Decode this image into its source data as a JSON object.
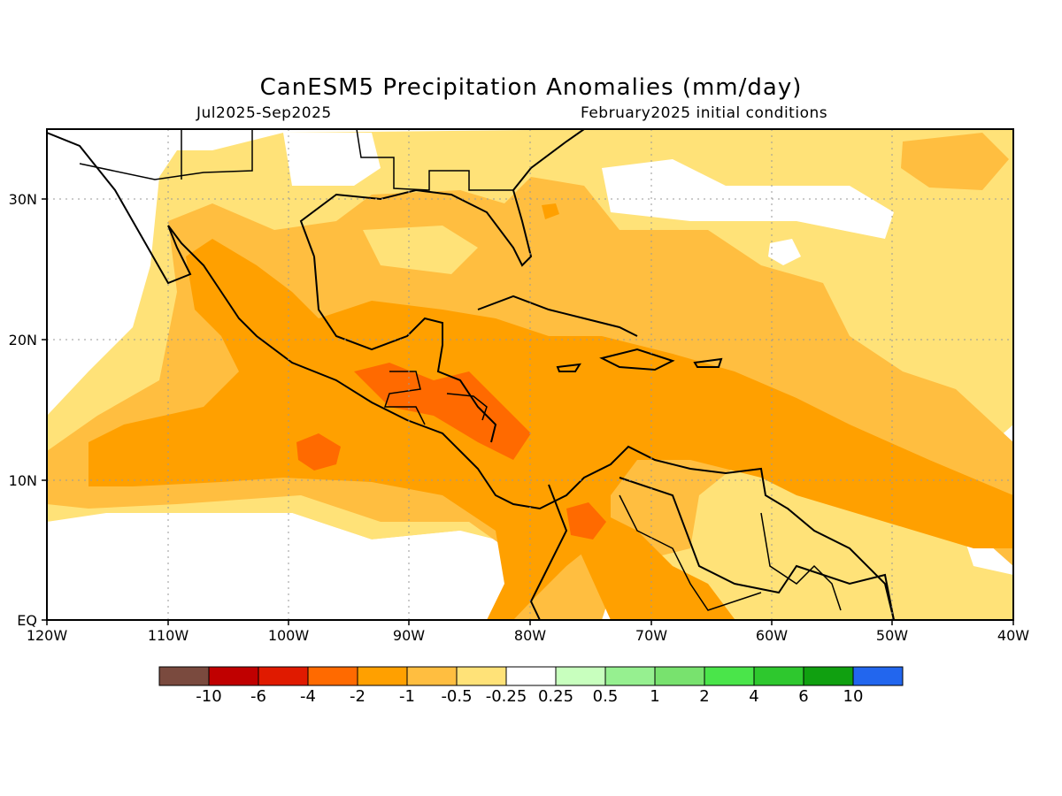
{
  "title": "CanESM5 Precipitation Anomalies (mm/day)",
  "subtitle_left": "Jul2025-Sep2025",
  "subtitle_right": "February2025 initial conditions",
  "map": {
    "lon_range": [
      -120,
      -40
    ],
    "lat_range": [
      0,
      35
    ],
    "x_ticks": [
      "120W",
      "110W",
      "100W",
      "90W",
      "80W",
      "70W",
      "60W",
      "50W",
      "40W"
    ],
    "y_ticks": [
      "EQ",
      "10N",
      "20N",
      "30N"
    ],
    "grid": "dotted",
    "region": "Caribbean, Central America, Gulf of Mexico, northern South America, tropical eastern Pacific and western Atlantic"
  },
  "colorbar": {
    "labels": [
      "-10",
      "-6",
      "-4",
      "-2",
      "-1",
      "-0.5",
      "-0.25",
      "0.25",
      "0.5",
      "1",
      "2",
      "4",
      "6",
      "10"
    ],
    "colors": [
      "#7a4a3e",
      "#c00000",
      "#e01a00",
      "#ff6a00",
      "#ffa000",
      "#ffbe40",
      "#ffe278",
      "#ffffff",
      "#c8ffbe",
      "#96f090",
      "#78e26e",
      "#4ae54a",
      "#2ec82e",
      "#10a010",
      "#2266ee"
    ]
  }
}
